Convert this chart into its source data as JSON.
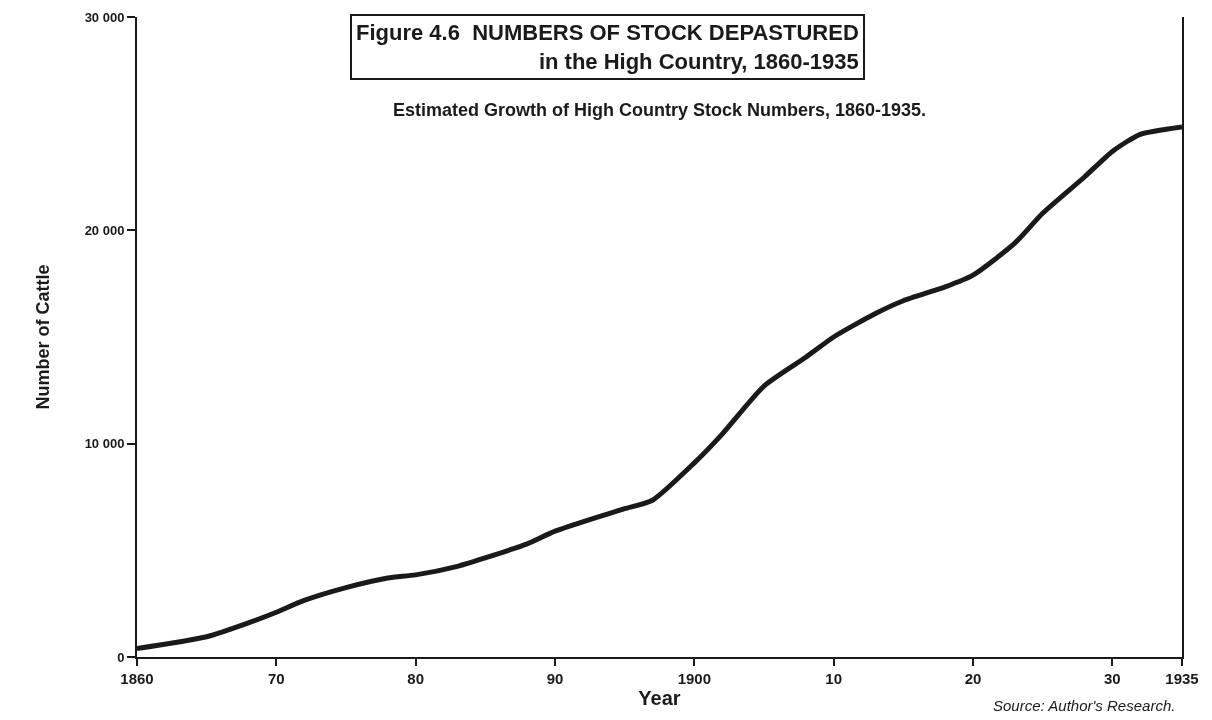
{
  "chart_data": {
    "type": "line",
    "title": "Figure 4.6  NUMBERS OF STOCK DEPASTURED\nin the High Country, 1860-1935",
    "subtitle": "Estimated Growth of High Country Stock Numbers, 1860-1935.",
    "xlabel": "Year",
    "ylabel": "Number of Cattle",
    "annotations": [
      "Source: Author's Research."
    ],
    "x": [
      1860,
      1865,
      1868,
      1870,
      1872,
      1875,
      1878,
      1880,
      1883,
      1885,
      1888,
      1890,
      1893,
      1895,
      1897,
      1900,
      1902,
      1905,
      1908,
      1910,
      1913,
      1915,
      1918,
      1920,
      1923,
      1925,
      1928,
      1930,
      1932,
      1935
    ],
    "series": [
      {
        "color": "#1a1a1a",
        "values": [
          400,
          950,
          1600,
          2100,
          2650,
          3250,
          3700,
          3850,
          4250,
          4650,
          5300,
          5900,
          6550,
          6950,
          7350,
          9100,
          10450,
          12700,
          14050,
          15000,
          16100,
          16700,
          17350,
          17900,
          19400,
          20800,
          22500,
          23700,
          24500,
          24850
        ]
      }
    ],
    "xlim": [
      1860,
      1935
    ],
    "xticks": [
      1860,
      {
        "value": 1870,
        "label": "70"
      },
      {
        "value": 1880,
        "label": "80"
      },
      {
        "value": 1890,
        "label": "90"
      },
      1900,
      {
        "value": 1910,
        "label": "10"
      },
      {
        "value": 1920,
        "label": "20"
      },
      {
        "value": 1930,
        "label": "30"
      },
      1935
    ],
    "ylim": [
      0,
      30000
    ],
    "yticks": [
      0,
      {
        "value": 10000,
        "label": "10 000"
      },
      {
        "value": 20000,
        "label": "20 000"
      },
      {
        "value": 30000,
        "label": "30 000"
      }
    ],
    "grid": false,
    "marker": "none",
    "line_style": "solid"
  }
}
